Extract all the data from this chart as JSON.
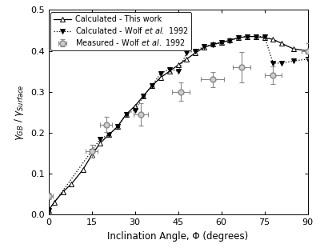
{
  "xlabel": "Inclination Angle, Φ (degrees)",
  "ylabel_line1": "γ",
  "xlim": [
    0,
    90
  ],
  "ylim": [
    0.0,
    0.5
  ],
  "xticks": [
    0,
    15,
    30,
    45,
    60,
    75,
    90
  ],
  "yticks": [
    0.0,
    0.1,
    0.2,
    0.3,
    0.4,
    0.5
  ],
  "calc_this_x": [
    0,
    2,
    5,
    8,
    12,
    15,
    18,
    21,
    24,
    27,
    30,
    33,
    36,
    39,
    42,
    45,
    48,
    51,
    54,
    57,
    60,
    63,
    66,
    69,
    72,
    75,
    78,
    81,
    85,
    90
  ],
  "calc_this_y": [
    0.01,
    0.03,
    0.055,
    0.075,
    0.11,
    0.145,
    0.175,
    0.195,
    0.215,
    0.245,
    0.265,
    0.29,
    0.315,
    0.335,
    0.35,
    0.365,
    0.38,
    0.395,
    0.408,
    0.416,
    0.42,
    0.426,
    0.432,
    0.435,
    0.435,
    0.432,
    0.428,
    0.418,
    0.405,
    0.4
  ],
  "calc_wolf_x": [
    0,
    15,
    18,
    21,
    24,
    27,
    30,
    33,
    36,
    39,
    42,
    45,
    48,
    51,
    54,
    57,
    60,
    63,
    66,
    69,
    72,
    75,
    78,
    81,
    85,
    90
  ],
  "calc_wolf_y": [
    0.01,
    0.155,
    0.185,
    0.195,
    0.215,
    0.245,
    0.255,
    0.29,
    0.315,
    0.345,
    0.355,
    0.35,
    0.395,
    0.4,
    0.41,
    0.415,
    0.42,
    0.425,
    0.432,
    0.435,
    0.435,
    0.435,
    0.37,
    0.37,
    0.375,
    0.38
  ],
  "meas_wolf_x": [
    0,
    15,
    20,
    32,
    46,
    57,
    67,
    78,
    90
  ],
  "meas_wolf_y": [
    0.045,
    0.155,
    0.22,
    0.245,
    0.3,
    0.33,
    0.36,
    0.34,
    0.4
  ],
  "meas_wolf_xerr": [
    1.5,
    2.0,
    2.0,
    2.5,
    3.0,
    4.0,
    3.0,
    3.0,
    2.0
  ],
  "meas_wolf_yerr": [
    0.008,
    0.015,
    0.018,
    0.028,
    0.022,
    0.018,
    0.038,
    0.022,
    0.018
  ]
}
